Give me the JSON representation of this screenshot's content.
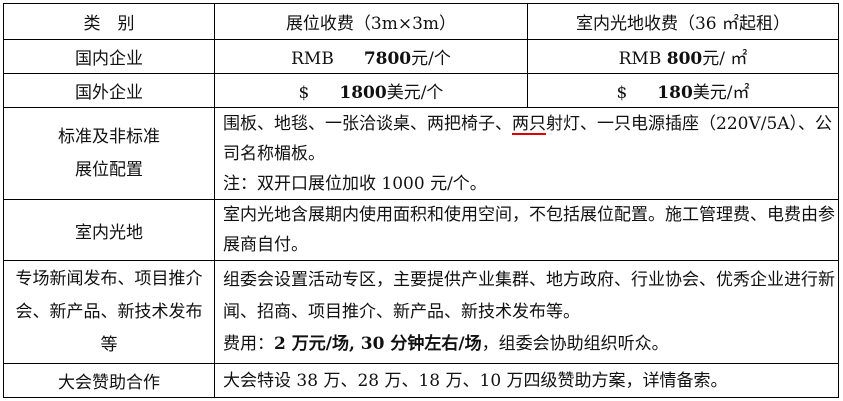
{
  "header": {
    "category": "类　别",
    "booth_fee": "展位收费（3m×3m）",
    "space_fee": "室内光地收费（36 ㎡起租）"
  },
  "rows": {
    "domestic": {
      "label": "国内企业",
      "booth_currency": "RMB",
      "booth_amount": "7800",
      "booth_unit": "元/个",
      "space_currency": "RMB",
      "space_amount": "800",
      "space_unit": "元/ ㎡"
    },
    "foreign": {
      "label": "国外企业",
      "booth_currency": "$",
      "booth_amount": "1800",
      "booth_unit": "美元/个",
      "space_currency": "$",
      "space_amount": "180",
      "space_unit": "美元/㎡"
    },
    "config": {
      "label_line1": "标准及非标准",
      "label_line2": "展位配置",
      "text_a": "围板、地毯、一张洽谈桌、两把椅子、",
      "text_underlined": "两只",
      "text_b": "射灯、一只电源插座（220V/5A）、公司名称楣板。",
      "note": "注：双开口展位加收 1000 元/个。"
    },
    "indoor_space": {
      "label": "室内光地",
      "text": "室内光地含展期内使用面积和使用空间，不包括展位配置。施工管理费、电费由参展商自付。"
    },
    "events": {
      "label": "专场新闻发布、项目推介会、新产品、新技术发布等",
      "text": "组委会设置活动专区，主要提供产业集群、地方政府、行业协会、优秀企业进行新闻、招商、项目推介、新产品、新技术发布等。",
      "fee_label": "费用：",
      "fee_bold": "2 万元/场, 30 分钟左右/场",
      "fee_rest": "，组委会协助组织听众。"
    },
    "sponsorship": {
      "label": "大会赞助合作",
      "text": "大会特设 38 万、28 万、18 万、10 万四级赞助方案，详情备索。"
    }
  },
  "colors": {
    "border": "#000000",
    "underline": "#dd0000"
  }
}
